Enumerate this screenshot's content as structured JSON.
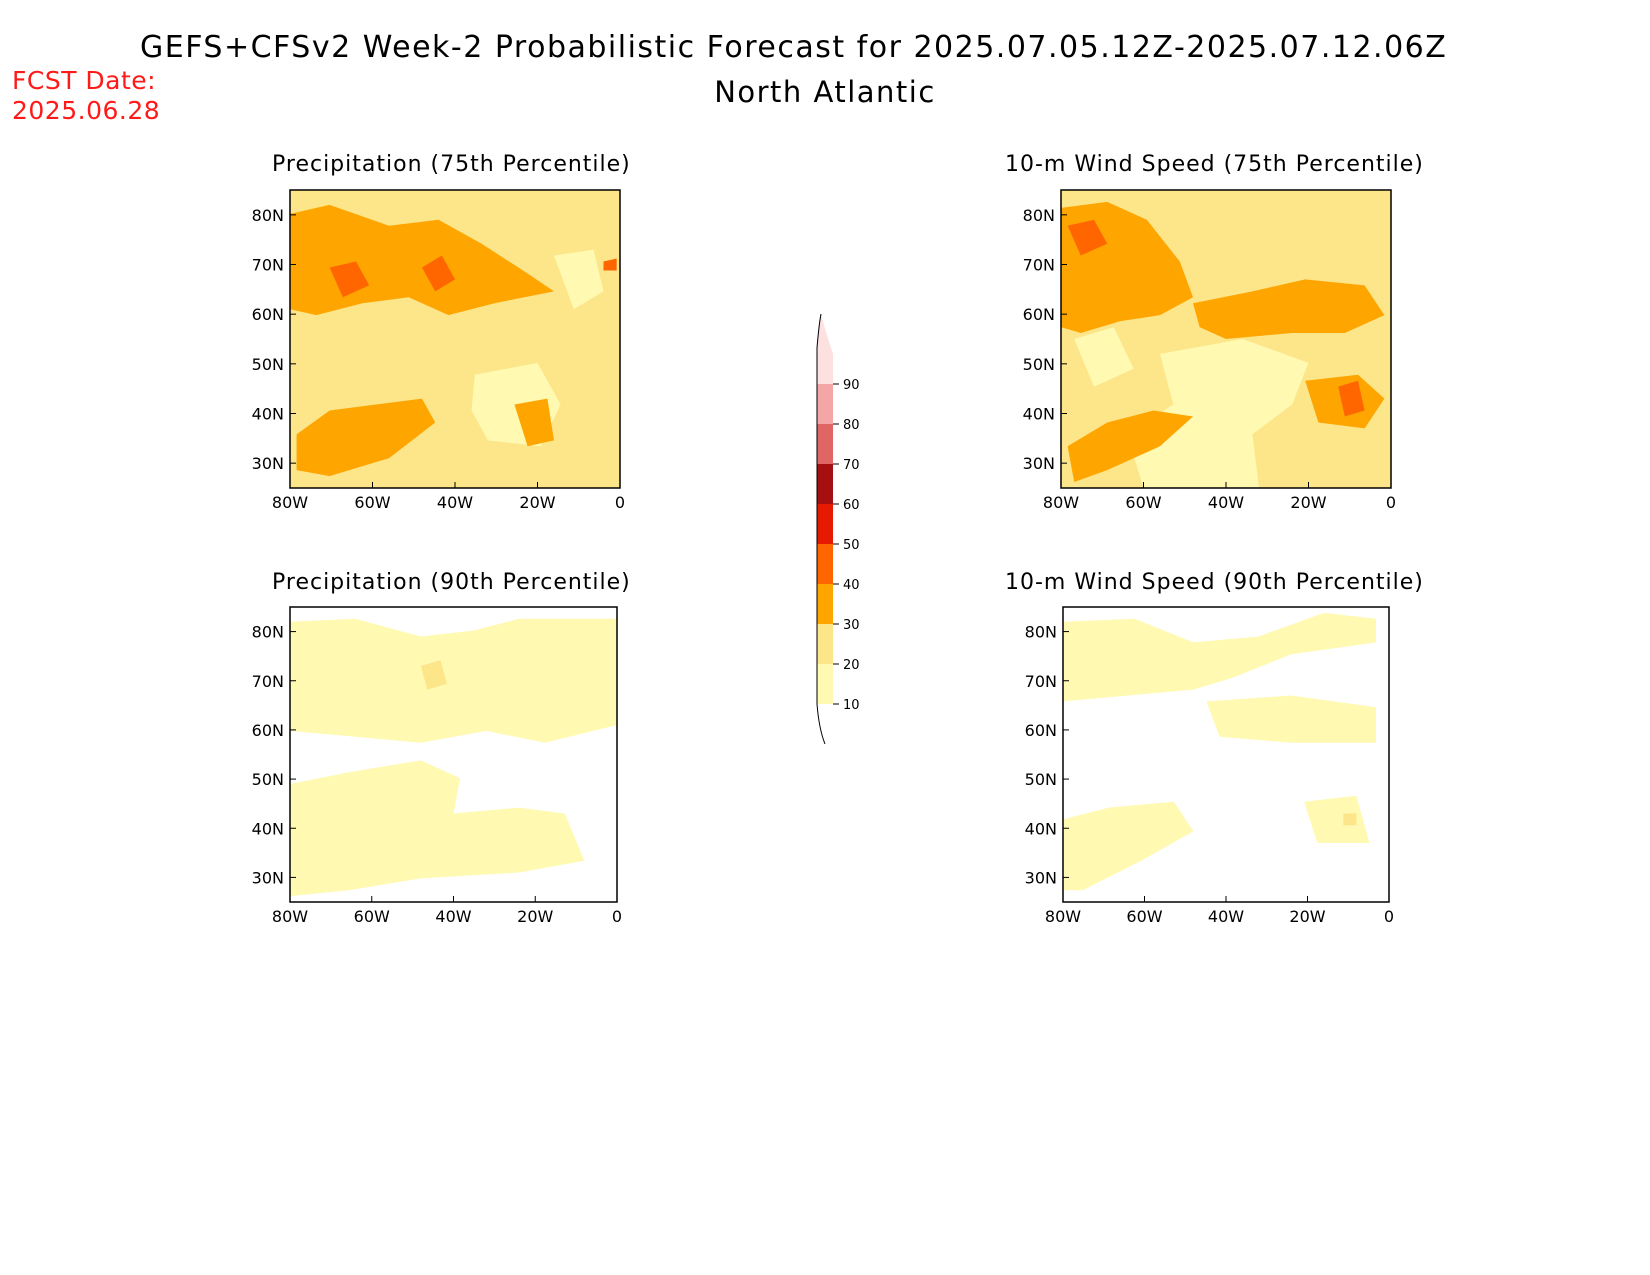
{
  "header": {
    "title": "GEFS+CFSv2 Week-2 Probabilistic Forecast for 2025.07.05.12Z-2025.07.12.06Z",
    "subtitle": "North Atlantic",
    "fcst_label": "FCST Date:",
    "fcst_date": "2025.06.28"
  },
  "panels": [
    {
      "title": "Precipitation (75th Percentile)",
      "level": "high",
      "variant": "precip"
    },
    {
      "title": "10-m Wind Speed (75th Percentile)",
      "level": "high",
      "variant": "wind"
    },
    {
      "title": "Precipitation (90th Percentile)",
      "level": "low",
      "variant": "precip"
    },
    {
      "title": "10-m Wind Speed (90th Percentile)",
      "level": "low",
      "variant": "wind"
    }
  ],
  "axes": {
    "lat_ticks": [
      "80N",
      "70N",
      "60N",
      "50N",
      "40N",
      "30N"
    ],
    "lon_ticks": [
      "80W",
      "60W",
      "40W",
      "20W",
      "0"
    ]
  },
  "colorbar": {
    "levels": [
      "10",
      "20",
      "30",
      "40",
      "50",
      "60",
      "70",
      "80",
      "90"
    ],
    "colors": [
      "#fff9b2",
      "#fde68a",
      "#ffa500",
      "#ff6600",
      "#e61a00",
      "#a50f0f",
      "#e06666",
      "#f4a6a6",
      "#fde0e0"
    ]
  }
}
